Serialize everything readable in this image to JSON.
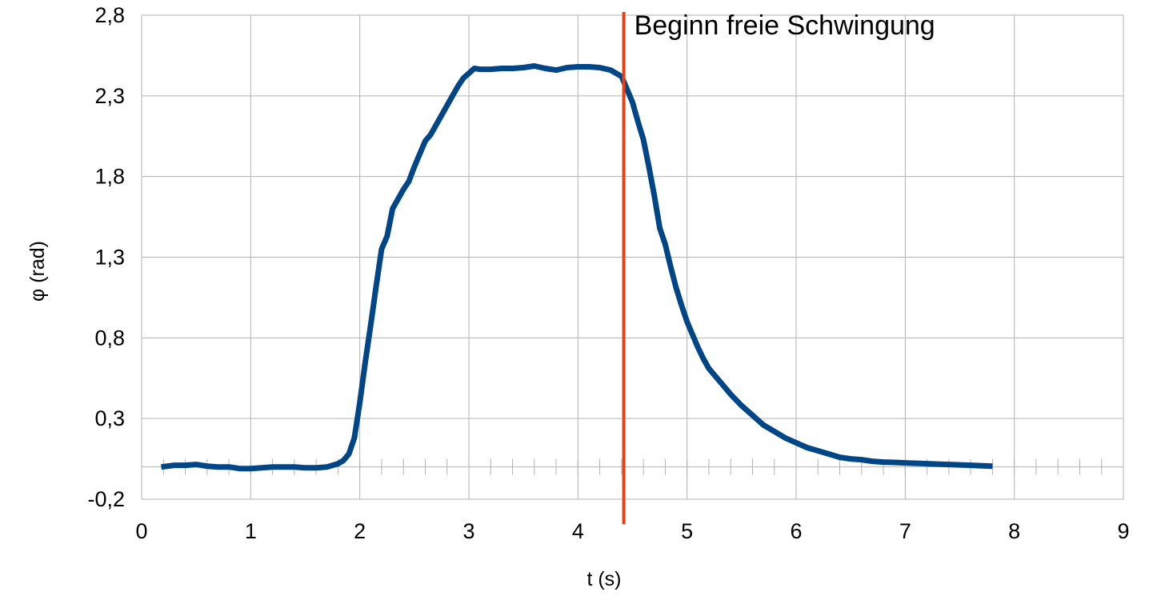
{
  "chart_data": {
    "type": "line",
    "xlabel": "t (s)",
    "ylabel": "φ (rad)",
    "xlim": [
      0,
      9
    ],
    "ylim": [
      -0.2,
      2.8
    ],
    "x_ticks": [
      0,
      1,
      2,
      3,
      4,
      5,
      6,
      7,
      8,
      9
    ],
    "x_tick_labels": [
      "0",
      "1",
      "2",
      "3",
      "4",
      "5",
      "6",
      "7",
      "8",
      "9"
    ],
    "y_ticks": [
      -0.2,
      0.3,
      0.8,
      1.3,
      1.8,
      2.3,
      2.8
    ],
    "y_tick_labels": [
      "-0,2",
      "0,3",
      "0,8",
      "1,3",
      "1,8",
      "2,3",
      "2,8"
    ],
    "grid": true,
    "series": [
      {
        "color": "#004586",
        "x": [
          0.18,
          0.3,
          0.4,
          0.5,
          0.6,
          0.7,
          0.8,
          0.9,
          1.0,
          1.1,
          1.2,
          1.3,
          1.4,
          1.5,
          1.6,
          1.7,
          1.8,
          1.85,
          1.9,
          1.95,
          2.0,
          2.05,
          2.1,
          2.15,
          2.2,
          2.25,
          2.3,
          2.35,
          2.4,
          2.45,
          2.5,
          2.55,
          2.6,
          2.65,
          2.7,
          2.75,
          2.8,
          2.85,
          2.9,
          2.95,
          3.0,
          3.05,
          3.1,
          3.15,
          3.2,
          3.3,
          3.4,
          3.5,
          3.6,
          3.7,
          3.8,
          3.9,
          4.0,
          4.1,
          4.2,
          4.3,
          4.4,
          4.5,
          4.55,
          4.6,
          4.65,
          4.7,
          4.75,
          4.8,
          4.85,
          4.9,
          4.95,
          5.0,
          5.05,
          5.1,
          5.15,
          5.2,
          5.3,
          5.4,
          5.5,
          5.6,
          5.7,
          5.8,
          5.9,
          6.0,
          6.1,
          6.2,
          6.3,
          6.4,
          6.5,
          6.6,
          6.7,
          6.8,
          6.9,
          7.0,
          7.2,
          7.4,
          7.6,
          7.8
        ],
        "y": [
          0.0,
          0.01,
          0.01,
          0.015,
          0.005,
          0.0,
          0.0,
          -0.01,
          -0.01,
          -0.005,
          0.0,
          0.0,
          0.0,
          -0.005,
          -0.005,
          0.0,
          0.02,
          0.04,
          0.08,
          0.18,
          0.4,
          0.65,
          0.88,
          1.12,
          1.35,
          1.43,
          1.6,
          1.66,
          1.72,
          1.77,
          1.86,
          1.94,
          2.02,
          2.06,
          2.12,
          2.18,
          2.24,
          2.3,
          2.36,
          2.41,
          2.44,
          2.47,
          2.465,
          2.465,
          2.465,
          2.47,
          2.47,
          2.475,
          2.485,
          2.47,
          2.46,
          2.475,
          2.48,
          2.48,
          2.475,
          2.46,
          2.42,
          2.26,
          2.14,
          2.03,
          1.86,
          1.68,
          1.48,
          1.38,
          1.24,
          1.11,
          1.0,
          0.9,
          0.82,
          0.74,
          0.67,
          0.61,
          0.53,
          0.45,
          0.38,
          0.32,
          0.26,
          0.22,
          0.18,
          0.15,
          0.12,
          0.1,
          0.08,
          0.06,
          0.05,
          0.045,
          0.035,
          0.03,
          0.028,
          0.025,
          0.02,
          0.015,
          0.01,
          0.005
        ]
      }
    ],
    "annotations": [
      {
        "type": "vline",
        "x": 4.42,
        "color": "#e8400f",
        "text": "Beginn freie Schwingung"
      }
    ]
  }
}
